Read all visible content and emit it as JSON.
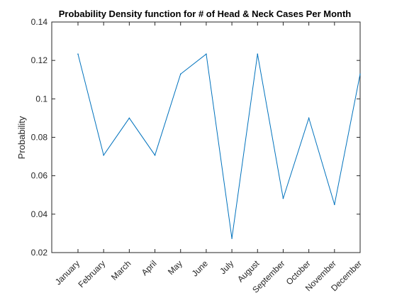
{
  "chart_data": {
    "type": "line",
    "title": "Probability Density function for # of Head & Neck Cases Per Month",
    "xlabel": "",
    "ylabel": "Probability",
    "categories": [
      "January",
      "February",
      "March",
      "April",
      "May",
      "June",
      "July",
      "August",
      "September",
      "October",
      "November",
      "December"
    ],
    "values": [
      0.1233,
      0.0707,
      0.09,
      0.0707,
      0.1129,
      0.1233,
      0.0274,
      0.1233,
      0.0482,
      0.09,
      0.045,
      0.1129
    ],
    "ylim": [
      0.02,
      0.14
    ],
    "yticks": [
      "0.02",
      "0.04",
      "0.06",
      "0.08",
      "0.1",
      "0.12",
      "0.14"
    ],
    "grid": false,
    "line_color": "#0072bd"
  }
}
